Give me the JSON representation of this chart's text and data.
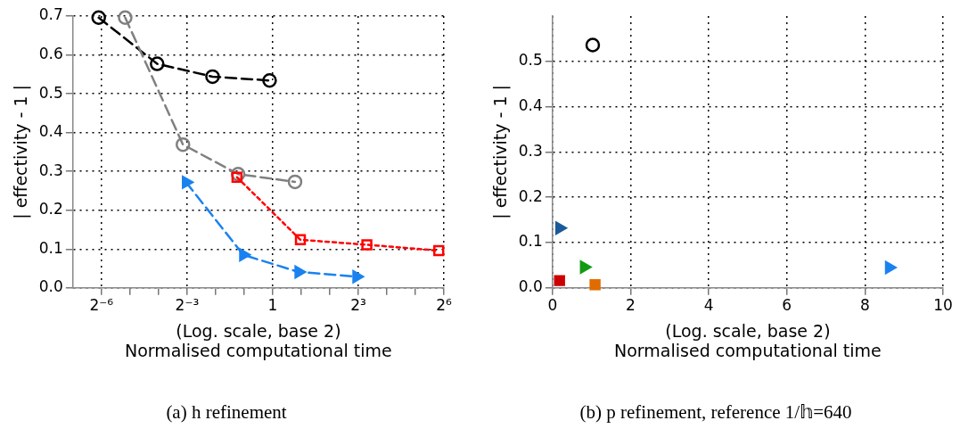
{
  "chart_data": [
    {
      "type": "line",
      "title": "(a) h refinement",
      "xlabel": "(Log. scale, base 2)\nNormalised computational time",
      "ylabel": "| effectivity - 1 |",
      "log": "x",
      "grid": true,
      "xlim": [
        0.0078125,
        64
      ],
      "xticks": [
        {
          "value": 0.015625,
          "label": "2⁻⁶"
        },
        {
          "value": 0.03125,
          "label": null
        },
        {
          "value": 0.0625,
          "label": null
        },
        {
          "value": 0.125,
          "label": "2⁻³"
        },
        {
          "value": 0.25,
          "label": null
        },
        {
          "value": 0.5,
          "label": null
        },
        1,
        {
          "value": 2,
          "label": null
        },
        {
          "value": 4,
          "label": null
        },
        {
          "value": 8,
          "label": "2³"
        },
        {
          "value": 16,
          "label": null
        },
        {
          "value": 32,
          "label": null
        },
        {
          "value": 64,
          "label": "2⁶"
        }
      ],
      "ylim": [
        0,
        0.7
      ],
      "yticks": [
        {
          "value": 0,
          "label": "0.0"
        },
        0.1,
        0.2,
        0.3,
        0.4,
        0.5,
        0.6,
        0.7
      ],
      "series": [
        {
          "color": "#000000",
          "marker": "circle",
          "line_style": "dashed",
          "x": [
            0.0146,
            0.0604,
            0.232,
            0.927
          ],
          "values": [
            0.696,
            0.577,
            0.544,
            0.534
          ]
        },
        {
          "color": "#808080",
          "marker": "circle",
          "line_style": "dashed",
          "x": [
            0.0278,
            0.113,
            0.432,
            1.72
          ],
          "values": [
            0.696,
            0.369,
            0.293,
            0.273
          ]
        },
        {
          "color": "#ff0000",
          "marker": "square",
          "line_style": "dotted",
          "x": [
            0.42,
            1.96,
            9.85,
            56.5
          ],
          "values": [
            0.285,
            0.124,
            0.111,
            0.096
          ]
        },
        {
          "color": "#1a82f0",
          "marker": "triangle",
          "line_style": "dashed",
          "x": [
            0.122,
            0.49,
            1.88,
            7.67
          ],
          "values": [
            0.272,
            0.085,
            0.041,
            0.029
          ]
        }
      ]
    },
    {
      "type": "scatter",
      "title": "(b) p refinement, reference 1/𝕙=640",
      "xlabel": "(Log. scale, base 2)\nNormalised computational time",
      "ylabel": "| effectivity - 1 |",
      "grid": true,
      "xlim": [
        0,
        10
      ],
      "xticks": [
        0,
        2,
        4,
        6,
        8,
        10
      ],
      "ylim": [
        0,
        0.6
      ],
      "yticks": [
        {
          "value": 0,
          "label": "0.0"
        },
        0.1,
        0.2,
        0.3,
        0.4,
        0.5
      ],
      "series": [
        {
          "color": "#000000",
          "marker": "circle",
          "x": [
            1.03
          ],
          "values": [
            0.536
          ]
        },
        {
          "color": "#1a5a9a",
          "marker": "triangle",
          "x": [
            0.18
          ],
          "values": [
            0.132
          ]
        },
        {
          "color": "#139a13",
          "marker": "triangle",
          "x": [
            0.81
          ],
          "values": [
            0.046
          ]
        },
        {
          "color": "#cc0000",
          "marker": "square",
          "x": [
            0.18
          ],
          "values": [
            0.016
          ]
        },
        {
          "color": "#e06c00",
          "marker": "square",
          "x": [
            1.09
          ],
          "values": [
            0.007
          ]
        },
        {
          "color": "#1a82f0",
          "marker": "triangle",
          "x": [
            8.62
          ],
          "values": [
            0.045
          ]
        }
      ]
    }
  ]
}
